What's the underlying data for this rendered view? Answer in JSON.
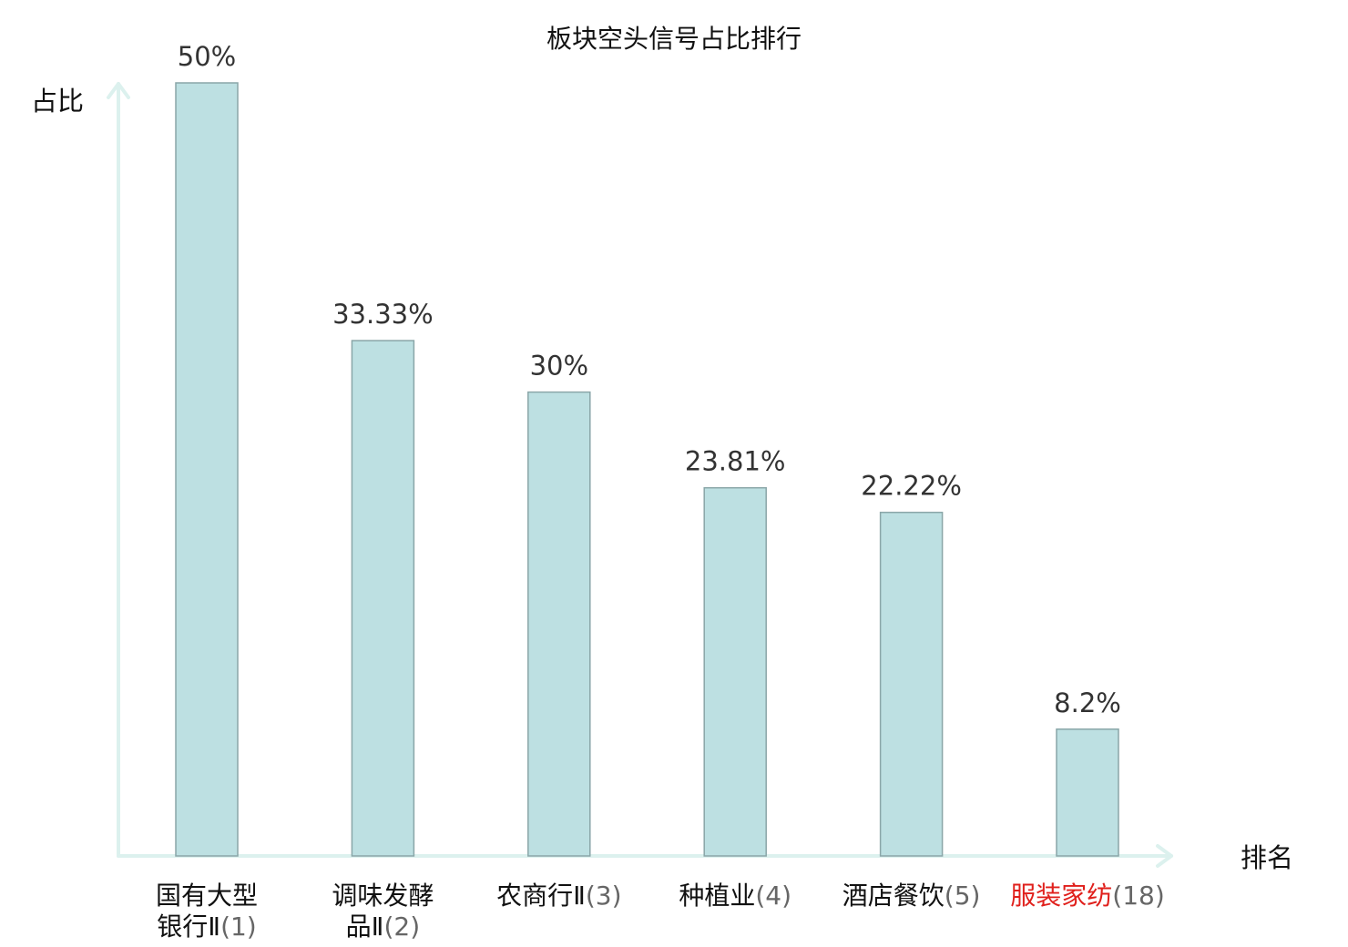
{
  "chart_data": {
    "type": "bar",
    "title": "板块空头信号占比排行",
    "ylabel": "占比",
    "xlabel": "排名",
    "ylim": [
      0,
      50
    ],
    "grid": false,
    "categories": [
      {
        "lines": [
          "国有大型",
          "银行Ⅱ"
        ],
        "rank": "(1)",
        "highlight": false
      },
      {
        "lines": [
          "调味发酵",
          "品Ⅱ"
        ],
        "rank": "(2)",
        "highlight": false
      },
      {
        "lines": [
          "农商行Ⅱ"
        ],
        "rank": "(3)",
        "highlight": false
      },
      {
        "lines": [
          "种植业"
        ],
        "rank": "(4)",
        "highlight": false
      },
      {
        "lines": [
          "酒店餐饮"
        ],
        "rank": "(5)",
        "highlight": false
      },
      {
        "lines": [
          "服装家纺"
        ],
        "rank": "(18)",
        "highlight": true
      }
    ],
    "values": [
      50,
      33.33,
      30,
      23.81,
      22.22,
      8.2
    ],
    "value_labels": [
      "50%",
      "33.33%",
      "30%",
      "23.81%",
      "22.22%",
      "8.2%"
    ],
    "colors": {
      "bar_fill": "#bde0e2",
      "bar_stroke": "#8aa6a8",
      "axis": "#dcf1ee",
      "highlight": "#e0201c",
      "rank_text": "#666666"
    }
  }
}
